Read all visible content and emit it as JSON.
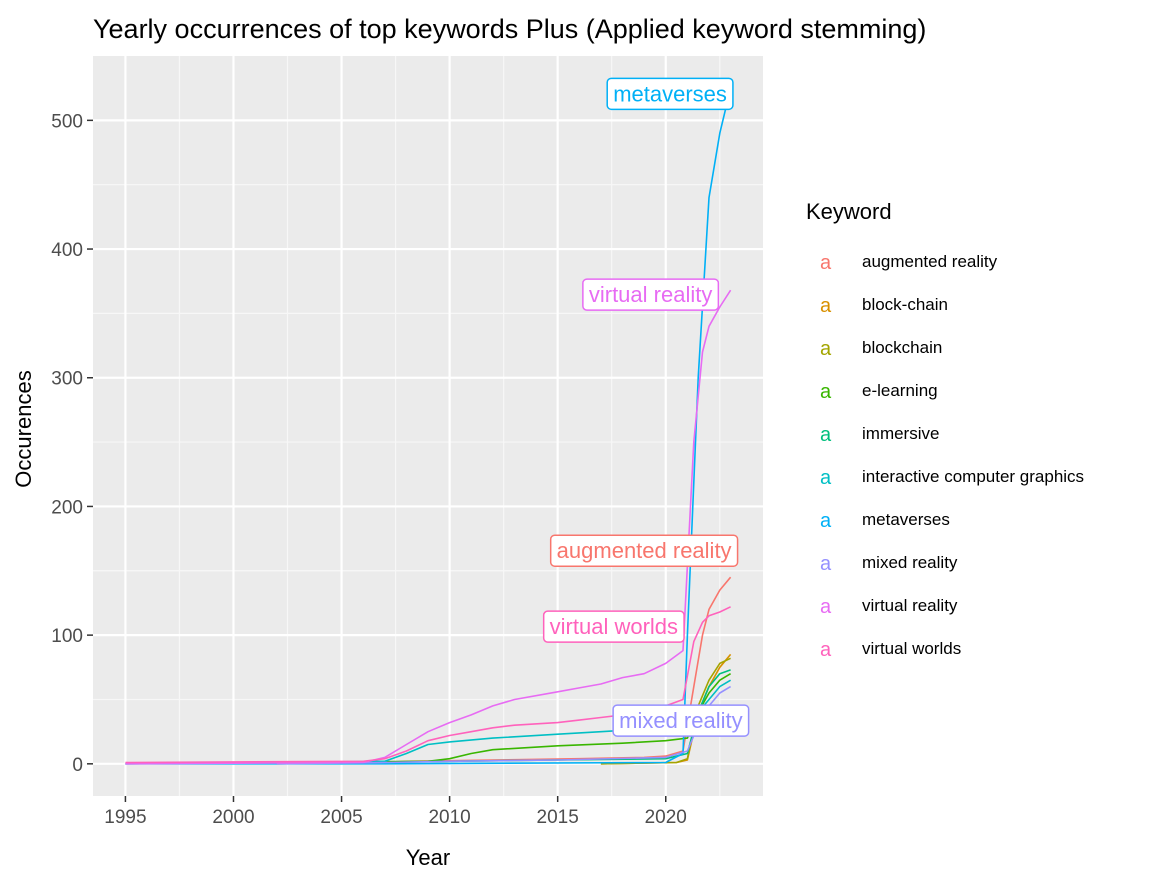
{
  "chart_data": {
    "type": "line",
    "title": "Yearly occurrences of top keywords Plus (Applied keyword stemming)",
    "xlabel": "Year",
    "ylabel": "Occurences",
    "xlim": [
      1993.5,
      2024.5
    ],
    "ylim": [
      -25,
      550
    ],
    "x_ticks": [
      1995,
      2000,
      2005,
      2010,
      2015,
      2020
    ],
    "y_ticks": [
      0,
      100,
      200,
      300,
      400,
      500
    ],
    "grid": true,
    "legend": {
      "title": "Keyword",
      "position": "right",
      "glyph": "a"
    },
    "series": [
      {
        "name": "augmented reality",
        "color": "#F8766D",
        "points": [
          [
            2002,
            1
          ],
          [
            2007,
            1
          ],
          [
            2008,
            2
          ],
          [
            2012,
            3
          ],
          [
            2016,
            4
          ],
          [
            2019,
            5
          ],
          [
            2020,
            6
          ],
          [
            2020.8,
            10
          ],
          [
            2021.3,
            60
          ],
          [
            2021.7,
            100
          ],
          [
            2022,
            120
          ],
          [
            2022.5,
            135
          ],
          [
            2023,
            145
          ]
        ]
      },
      {
        "name": "block-chain",
        "color": "#D89000",
        "points": [
          [
            2017,
            0
          ],
          [
            2020.5,
            1
          ],
          [
            2021,
            3
          ],
          [
            2021.5,
            40
          ],
          [
            2022,
            60
          ],
          [
            2022.5,
            75
          ],
          [
            2023,
            85
          ]
        ]
      },
      {
        "name": "blockchain",
        "color": "#A3A500",
        "points": [
          [
            2017,
            0
          ],
          [
            2020.5,
            1
          ],
          [
            2021,
            4
          ],
          [
            2021.5,
            45
          ],
          [
            2022,
            65
          ],
          [
            2022.5,
            78
          ],
          [
            2023,
            82
          ]
        ]
      },
      {
        "name": "e-learning",
        "color": "#39B600",
        "points": [
          [
            2002,
            1
          ],
          [
            2009,
            2
          ],
          [
            2010,
            4
          ],
          [
            2011,
            8
          ],
          [
            2012,
            11
          ],
          [
            2015,
            14
          ],
          [
            2018,
            16
          ],
          [
            2020,
            18
          ],
          [
            2021,
            20
          ],
          [
            2021.5,
            40
          ],
          [
            2022,
            55
          ],
          [
            2022.5,
            65
          ],
          [
            2023,
            70
          ]
        ]
      },
      {
        "name": "immersive",
        "color": "#00BF7D",
        "points": [
          [
            2002,
            0
          ],
          [
            2007,
            1
          ],
          [
            2010,
            2
          ],
          [
            2015,
            3
          ],
          [
            2020,
            4
          ],
          [
            2021,
            8
          ],
          [
            2021.5,
            40
          ],
          [
            2022,
            60
          ],
          [
            2022.5,
            70
          ],
          [
            2023,
            73
          ]
        ]
      },
      {
        "name": "interactive computer graphics",
        "color": "#00BFC4",
        "points": [
          [
            1995,
            0
          ],
          [
            2002,
            1
          ],
          [
            2007,
            2
          ],
          [
            2008,
            8
          ],
          [
            2009,
            15
          ],
          [
            2010,
            17
          ],
          [
            2012,
            20
          ],
          [
            2015,
            23
          ],
          [
            2017,
            25
          ],
          [
            2020,
            28
          ],
          [
            2021,
            30
          ],
          [
            2021.5,
            40
          ],
          [
            2022,
            50
          ],
          [
            2022.5,
            60
          ],
          [
            2023,
            65
          ]
        ]
      },
      {
        "name": "metaverses",
        "color": "#00B0F6",
        "points": [
          [
            1995,
            0
          ],
          [
            2007,
            0
          ],
          [
            2020,
            1
          ],
          [
            2020.8,
            8
          ],
          [
            2021,
            100
          ],
          [
            2021.5,
            300
          ],
          [
            2022,
            440
          ],
          [
            2022.5,
            490
          ],
          [
            2023,
            525
          ]
        ]
      },
      {
        "name": "mixed reality",
        "color": "#9590FF",
        "points": [
          [
            2002,
            0
          ],
          [
            2007,
            1
          ],
          [
            2010,
            2
          ],
          [
            2015,
            3
          ],
          [
            2020,
            5
          ],
          [
            2021,
            10
          ],
          [
            2021.5,
            30
          ],
          [
            2022,
            45
          ],
          [
            2022.5,
            55
          ],
          [
            2023,
            60
          ]
        ]
      },
      {
        "name": "virtual reality",
        "color": "#E76BF3",
        "points": [
          [
            1995,
            0
          ],
          [
            2006,
            1
          ],
          [
            2007,
            5
          ],
          [
            2008,
            15
          ],
          [
            2009,
            25
          ],
          [
            2010,
            32
          ],
          [
            2011,
            38
          ],
          [
            2012,
            45
          ],
          [
            2013,
            50
          ],
          [
            2015,
            56
          ],
          [
            2016,
            59
          ],
          [
            2017,
            62
          ],
          [
            2018,
            67
          ],
          [
            2019,
            70
          ],
          [
            2020,
            78
          ],
          [
            2020.8,
            88
          ],
          [
            2021.3,
            250
          ],
          [
            2021.7,
            320
          ],
          [
            2022,
            340
          ],
          [
            2022.5,
            355
          ],
          [
            2023,
            368
          ]
        ]
      },
      {
        "name": "virtual worlds",
        "color": "#FF62BC",
        "points": [
          [
            1995,
            1
          ],
          [
            2006,
            2
          ],
          [
            2007,
            4
          ],
          [
            2008,
            10
          ],
          [
            2009,
            18
          ],
          [
            2010,
            22
          ],
          [
            2011,
            25
          ],
          [
            2012,
            28
          ],
          [
            2013,
            30
          ],
          [
            2015,
            32
          ],
          [
            2016,
            34
          ],
          [
            2017,
            36
          ],
          [
            2018,
            38
          ],
          [
            2019,
            40
          ],
          [
            2020,
            45
          ],
          [
            2020.8,
            50
          ],
          [
            2021.3,
            95
          ],
          [
            2021.7,
            110
          ],
          [
            2022,
            115
          ],
          [
            2022.5,
            118
          ],
          [
            2023,
            122
          ]
        ]
      }
    ],
    "annotations": [
      {
        "text": "metaverses",
        "series": "metaverses",
        "color": "#00B0F6",
        "x": 2020.2,
        "y": 521
      },
      {
        "text": "virtual reality",
        "series": "virtual reality",
        "color": "#E76BF3",
        "x": 2019.3,
        "y": 365
      },
      {
        "text": "augmented reality",
        "series": "augmented reality",
        "color": "#F8766D",
        "x": 2019,
        "y": 166
      },
      {
        "text": "virtual worlds",
        "series": "virtual worlds",
        "color": "#FF62BC",
        "x": 2017.6,
        "y": 107
      },
      {
        "text": "mixed reality",
        "series": "mixed reality",
        "color": "#9590FF",
        "x": 2020.7,
        "y": 34
      }
    ]
  }
}
